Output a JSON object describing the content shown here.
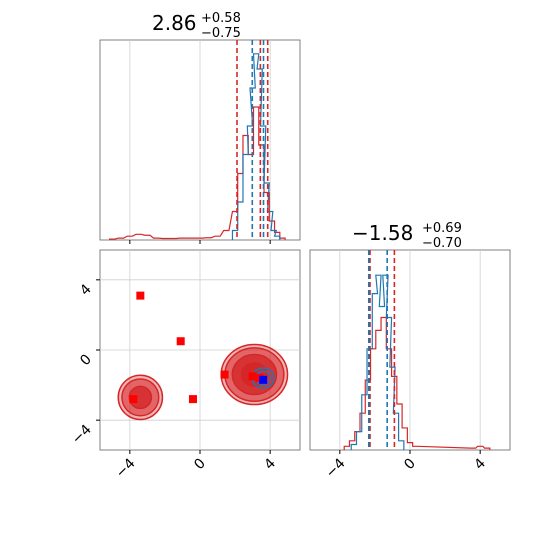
{
  "chart_data": [
    {
      "type": "histogram",
      "panel": "top-left marginal",
      "title": {
        "value": "2.86",
        "plus": "+0.58",
        "minus": "−0.75"
      },
      "xlim": [
        -5.7,
        5.7
      ],
      "x_ticks": [
        -4,
        0,
        4
      ],
      "x_tick_labels_shown": false,
      "grid": true,
      "series": [
        {
          "color": "#d62728",
          "bins": [
            [
              -5,
              0.005
            ],
            [
              -4.5,
              0.01
            ],
            [
              -4,
              0.02
            ],
            [
              -3.5,
              0.03
            ],
            [
              -3,
              0.025
            ],
            [
              -2.5,
              0.01
            ],
            [
              -2,
              0.008
            ],
            [
              -1.5,
              0.008
            ],
            [
              -1,
              0.01
            ],
            [
              -0.5,
              0.01
            ],
            [
              0,
              0.01
            ],
            [
              0.5,
              0.012
            ],
            [
              1,
              0.02
            ],
            [
              1.5,
              0.05
            ],
            [
              2,
              0.15
            ],
            [
              2.3,
              0.35
            ],
            [
              2.6,
              0.55
            ],
            [
              2.9,
              0.45
            ],
            [
              3.2,
              0.7
            ],
            [
              3.5,
              0.5
            ],
            [
              3.8,
              0.25
            ],
            [
              4.1,
              0.1
            ],
            [
              4.4,
              0.04
            ],
            [
              4.7,
              0.01
            ]
          ]
        },
        {
          "color": "#1f77b4",
          "bins": [
            [
              2.0,
              0.05
            ],
            [
              2.3,
              0.2
            ],
            [
              2.6,
              0.45
            ],
            [
              2.85,
              0.6
            ],
            [
              3.0,
              0.8
            ],
            [
              3.2,
              0.98
            ],
            [
              3.4,
              0.9
            ],
            [
              3.6,
              0.6
            ],
            [
              3.8,
              0.3
            ],
            [
              4.0,
              0.15
            ],
            [
              4.2,
              0.05
            ],
            [
              4.4,
              0.02
            ]
          ]
        }
      ],
      "quantile_lines": [
        {
          "color": "#d62728",
          "x": [
            2.11,
            3.44,
            3.86
          ]
        },
        {
          "color": "#1f77b4",
          "x": [
            2.98,
            3.62
          ]
        }
      ]
    },
    {
      "type": "contour-scatter",
      "panel": "bottom-left joint",
      "xlim": [
        -5.7,
        5.7
      ],
      "ylim": [
        -5.7,
        5.7
      ],
      "x_ticks": [
        -4,
        0,
        4
      ],
      "y_ticks": [
        -4,
        0,
        4
      ],
      "x_tick_labels": [
        "−4",
        "0",
        "4"
      ],
      "y_tick_labels": [
        "−4",
        "0",
        "4"
      ],
      "grid": true,
      "points_red": [
        [
          -3.4,
          3.1
        ],
        [
          -1.1,
          0.5
        ],
        [
          -0.4,
          -2.8
        ],
        [
          1.4,
          -1.4
        ],
        [
          3.0,
          -1.5
        ],
        [
          3.4,
          -1.6
        ],
        [
          -3.8,
          -2.8
        ]
      ],
      "points_blue": [
        [
          3.6,
          -1.7
        ]
      ],
      "contours": [
        {
          "color": "#d62728",
          "center": [
            3.1,
            -1.4
          ],
          "radii": [
            1.8,
            1.6,
            1.2,
            0.7
          ]
        },
        {
          "color": "#d62728",
          "center": [
            -3.4,
            -2.7
          ],
          "radii": [
            1.2,
            1.0,
            0.6
          ]
        },
        {
          "color": "#1f77b4",
          "center": [
            3.6,
            -1.6
          ],
          "radii": [
            0.6,
            0.4
          ]
        }
      ]
    },
    {
      "type": "histogram",
      "panel": "bottom-right marginal",
      "title": {
        "value": "−1.58",
        "plus": "+0.69",
        "minus": "−0.70"
      },
      "xlim": [
        -5.7,
        5.7
      ],
      "x_ticks": [
        -4,
        0,
        4
      ],
      "x_tick_labels": [
        "−4",
        "0",
        "4"
      ],
      "grid": true,
      "series": [
        {
          "color": "#d62728",
          "bins": [
            [
              -3.6,
              0.02
            ],
            [
              -3.3,
              0.05
            ],
            [
              -3.0,
              0.1
            ],
            [
              -2.7,
              0.2
            ],
            [
              -2.4,
              0.38
            ],
            [
              -2.1,
              0.55
            ],
            [
              -1.8,
              0.65
            ],
            [
              -1.5,
              0.72
            ],
            [
              -1.2,
              0.55
            ],
            [
              -0.9,
              0.4
            ],
            [
              -0.6,
              0.25
            ],
            [
              -0.3,
              0.12
            ],
            [
              0.0,
              0.04
            ],
            [
              0.3,
              0.02
            ],
            [
              3.6,
              0.01
            ],
            [
              4.0,
              0.02
            ],
            [
              4.4,
              0.01
            ]
          ]
        },
        {
          "color": "#1f77b4",
          "bins": [
            [
              -3.2,
              0.03
            ],
            [
              -2.9,
              0.1
            ],
            [
              -2.6,
              0.3
            ],
            [
              -2.3,
              0.55
            ],
            [
              -2.0,
              0.85
            ],
            [
              -1.8,
              0.95
            ],
            [
              -1.6,
              0.78
            ],
            [
              -1.4,
              0.95
            ],
            [
              -1.2,
              0.72
            ],
            [
              -1.0,
              0.45
            ],
            [
              -0.8,
              0.2
            ],
            [
              -0.5,
              0.05
            ]
          ]
        }
      ],
      "quantile_lines": [
        {
          "color": "#d62728",
          "x": [
            -2.28,
            -0.89
          ]
        },
        {
          "color": "#1f77b4",
          "x": [
            -2.35,
            -1.3
          ]
        }
      ]
    }
  ]
}
